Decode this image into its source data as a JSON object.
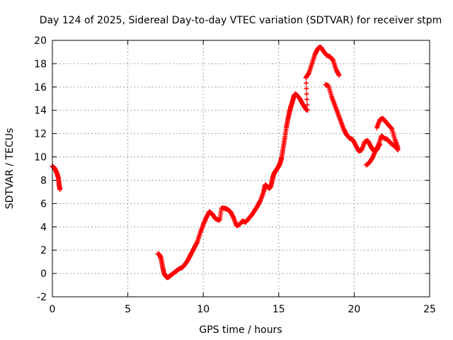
{
  "chart_data": {
    "type": "scatter",
    "title": "Day 124 of 2025, Sidereal Day-to-day VTEC variation (SDTVAR) for receiver stpm",
    "xlabel": "GPS time / hours",
    "ylabel": "SDTVAR / TECUs",
    "xlim": [
      0,
      25
    ],
    "ylim": [
      -2,
      20
    ],
    "xticks": [
      0,
      5,
      10,
      15,
      20,
      25
    ],
    "yticks": [
      -2,
      0,
      2,
      4,
      6,
      8,
      10,
      12,
      14,
      16,
      18,
      20
    ],
    "grid": true,
    "marker": "+",
    "color": "#ff0000",
    "series": [
      {
        "name": "SDTVAR",
        "x": [
          0.0,
          0.1,
          0.2,
          0.3,
          0.4,
          0.45,
          0.5,
          7.0,
          7.1,
          7.2,
          7.3,
          7.4,
          7.5,
          7.6,
          7.7,
          7.8,
          8.0,
          8.2,
          8.4,
          8.6,
          8.8,
          9.0,
          9.2,
          9.4,
          9.6,
          9.8,
          10.0,
          10.2,
          10.4,
          10.6,
          10.8,
          11.0,
          11.1,
          11.2,
          11.4,
          11.6,
          11.8,
          12.0,
          12.2,
          12.4,
          12.6,
          12.8,
          13.0,
          13.2,
          13.4,
          13.6,
          13.8,
          14.0,
          14.1,
          14.2,
          14.3,
          14.4,
          14.5,
          14.6,
          14.7,
          14.8,
          14.9,
          15.0,
          15.1,
          15.2,
          15.3,
          15.4,
          15.5,
          15.6,
          15.7,
          15.8,
          15.9,
          16.0,
          16.1,
          16.2,
          16.4,
          16.6,
          16.8,
          16.9,
          16.8,
          17.0,
          17.2,
          17.4,
          17.6,
          17.7,
          17.8,
          18.0,
          18.2,
          18.4,
          18.6,
          18.8,
          19.0,
          18.1,
          18.3,
          18.5,
          18.7,
          18.9,
          19.1,
          19.3,
          19.5,
          19.7,
          19.9,
          20.1,
          20.3,
          20.5,
          20.7,
          20.9,
          21.1,
          21.3,
          21.5,
          21.7,
          20.8,
          21.0,
          21.2,
          21.4,
          21.6,
          21.8,
          22.0,
          22.2,
          22.4,
          22.6,
          22.8,
          22.9
        ],
        "y": [
          9.2,
          9.1,
          8.9,
          8.6,
          8.2,
          7.6,
          7.2,
          1.7,
          1.6,
          1.3,
          0.6,
          0.0,
          -0.2,
          -0.35,
          -0.3,
          -0.2,
          0.0,
          0.2,
          0.4,
          0.5,
          0.8,
          1.2,
          1.7,
          2.2,
          2.7,
          3.5,
          4.2,
          4.8,
          5.3,
          5.1,
          4.7,
          4.6,
          4.6,
          5.6,
          5.6,
          5.5,
          5.3,
          4.8,
          4.1,
          4.2,
          4.5,
          4.4,
          4.7,
          5.0,
          5.4,
          5.8,
          6.3,
          7.0,
          7.6,
          7.5,
          7.4,
          7.3,
          7.6,
          8.2,
          8.6,
          8.8,
          9.0,
          9.2,
          9.5,
          10.0,
          10.8,
          11.6,
          12.5,
          13.2,
          13.8,
          14.3,
          14.7,
          15.2,
          15.4,
          15.3,
          15.0,
          14.5,
          14.1,
          14.0,
          16.8,
          17.2,
          18.0,
          18.8,
          19.3,
          19.4,
          19.4,
          19.0,
          18.7,
          18.6,
          18.3,
          17.5,
          17.0,
          16.2,
          16.1,
          15.2,
          14.5,
          13.8,
          13.1,
          12.4,
          11.9,
          11.6,
          11.5,
          11.0,
          10.5,
          10.6,
          11.3,
          11.4,
          10.9,
          10.5,
          10.6,
          11.1,
          9.3,
          9.5,
          9.9,
          10.5,
          11.0,
          11.8,
          11.6,
          11.5,
          11.2,
          11.0,
          10.8,
          10.6
        ],
        "x2": [
          21.5,
          21.7,
          21.9,
          22.1,
          22.3,
          22.5,
          22.7,
          22.9
        ],
        "y2": [
          12.5,
          13.2,
          13.3,
          13.0,
          12.7,
          12.4,
          11.5,
          10.8
        ]
      }
    ]
  }
}
